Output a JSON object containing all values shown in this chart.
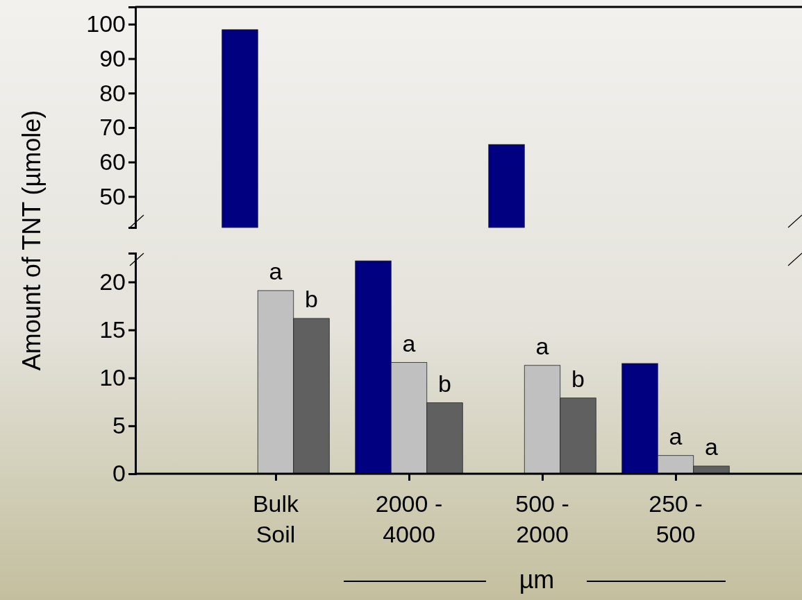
{
  "chart_data": [
    {
      "type": "bar",
      "categories": [
        null,
        null,
        null,
        null
      ],
      "series": [
        {
          "color": "#000080",
          "values": [
            98.4,
            null,
            65.1,
            null
          ]
        }
      ],
      "ylim": [
        41,
        105
      ],
      "yticks": [
        50,
        60,
        70,
        80,
        90,
        100
      ],
      "tick_labels": "y",
      "grid": false
    },
    {
      "type": "bar",
      "categories": [
        "Bulk Soil",
        "2000 - 4000",
        "500 - 2000",
        "250 - 500"
      ],
      "series": [
        {
          "color": "#000080",
          "values": [
            null,
            22.2,
            null,
            11.5
          ]
        },
        {
          "color": "#c0c0c0",
          "values": [
            19.1,
            11.6,
            11.3,
            1.9
          ],
          "value_labels": [
            "a",
            "a",
            "a",
            "a"
          ]
        },
        {
          "color": "#606060",
          "values": [
            16.2,
            7.4,
            7.9,
            0.8
          ],
          "value_labels": [
            "b",
            "b",
            "b",
            "a"
          ]
        }
      ],
      "ylim": [
        0,
        23
      ],
      "yticks": [
        0,
        5,
        10,
        15,
        20
      ],
      "ylabel": "Amount of TNT (µmole)",
      "xlabel": "µm",
      "grid": false
    }
  ]
}
